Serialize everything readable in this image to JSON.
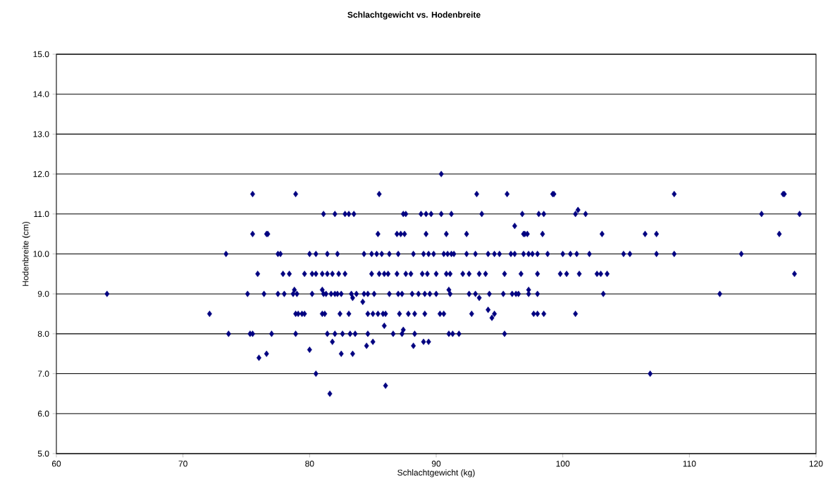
{
  "chart_data": {
    "type": "scatter",
    "title": "Schlachtgewicht vs. Hodenbreite",
    "xlabel": "Schlachtgewicht (kg)",
    "ylabel": "Hodenbreite (cm)",
    "xlim": [
      60,
      120
    ],
    "xticks": [
      60,
      70,
      80,
      90,
      100,
      110,
      120
    ],
    "ylim": [
      5,
      15
    ],
    "yticks": [
      {
        "value": 5,
        "label": "5.0"
      },
      {
        "value": 6,
        "label": "6.0"
      },
      {
        "value": 7,
        "label": "7.0"
      },
      {
        "value": 8,
        "label": "8.0"
      },
      {
        "value": 9,
        "label": "9.0"
      },
      {
        "value": 10,
        "label": "10.0"
      },
      {
        "value": 11,
        "label": "11.0"
      },
      {
        "value": 12,
        "label": "12.0"
      },
      {
        "value": 13,
        "label": "13.0"
      },
      {
        "value": 14,
        "label": "14.0"
      },
      {
        "value": 15,
        "label": "15.0"
      }
    ],
    "grid": "y",
    "legend": false,
    "marker": "diamond",
    "series": [
      {
        "color": "#000080",
        "x": [
          90.4,
          75.5,
          78.9,
          85.5,
          93.2,
          95.6,
          99.2,
          99.3,
          108.8,
          117.4,
          117.5,
          81.1,
          82.0,
          82.8,
          83.1,
          83.5,
          87.4,
          87.6,
          88.8,
          89.2,
          89.6,
          90.4,
          91.2,
          93.6,
          96.8,
          98.1,
          98.5,
          101.0,
          101.8,
          115.7,
          118.7,
          101.2,
          96.2,
          75.5,
          76.6,
          76.7,
          85.4,
          86.9,
          87.2,
          87.5,
          89.2,
          90.8,
          92.4,
          96.9,
          97.0,
          97.2,
          98.4,
          103.1,
          106.5,
          107.4,
          117.1,
          73.4,
          77.5,
          77.7,
          80.0,
          80.5,
          81.4,
          82.2,
          84.3,
          84.9,
          85.3,
          85.7,
          86.3,
          87.0,
          88.2,
          89.0,
          89.4,
          89.8,
          90.6,
          90.9,
          91.2,
          91.4,
          92.4,
          93.1,
          94.1,
          94.6,
          95.0,
          95.9,
          96.2,
          96.9,
          97.3,
          97.6,
          98.0,
          98.8,
          100.0,
          100.6,
          101.1,
          102.1,
          104.8,
          105.3,
          107.4,
          108.8,
          114.1,
          75.9,
          77.9,
          78.4,
          79.6,
          80.2,
          80.5,
          81.0,
          81.4,
          81.8,
          82.3,
          82.8,
          84.9,
          85.5,
          85.9,
          86.2,
          86.9,
          87.6,
          88.0,
          88.9,
          89.3,
          90.0,
          90.8,
          91.1,
          92.1,
          92.6,
          93.4,
          93.9,
          95.4,
          96.7,
          98.0,
          99.8,
          100.3,
          101.3,
          102.7,
          103.0,
          103.5,
          118.3,
          64.0,
          75.1,
          76.4,
          77.5,
          78.0,
          78.7,
          79.0,
          80.2,
          81.1,
          81.3,
          81.7,
          82.0,
          82.2,
          82.5,
          83.3,
          83.7,
          84.3,
          84.6,
          85.1,
          86.3,
          87.0,
          87.3,
          88.1,
          88.6,
          89.1,
          89.5,
          90.0,
          91.1,
          92.6,
          93.1,
          94.2,
          95.3,
          96.0,
          96.3,
          96.5,
          97.3,
          98.0,
          103.2,
          112.4,
          78.8,
          81.0,
          91.0,
          97.3,
          83.4,
          93.4,
          84.2,
          94.1,
          94.4,
          72.1,
          78.9,
          79.1,
          79.4,
          79.6,
          81.0,
          81.2,
          82.4,
          83.1,
          84.6,
          85.0,
          85.4,
          85.8,
          86.0,
          87.1,
          87.8,
          88.3,
          89.1,
          90.3,
          90.6,
          92.8,
          94.6,
          97.7,
          98.0,
          98.5,
          101.0,
          73.6,
          75.3,
          75.5,
          77.0,
          78.9,
          81.4,
          82.0,
          82.6,
          83.2,
          83.6,
          84.6,
          86.6,
          87.3,
          88.3,
          91.0,
          91.3,
          91.8,
          95.4,
          85.9,
          87.4,
          81.8,
          85.0,
          89.0,
          89.4,
          84.5,
          88.2,
          76.6,
          82.5,
          83.4,
          76.0,
          80.0,
          80.5,
          106.9,
          86.0,
          81.6
        ],
        "values": [
          12.0,
          11.5,
          11.5,
          11.5,
          11.5,
          11.5,
          11.5,
          11.5,
          11.5,
          11.5,
          11.5,
          11.0,
          11.0,
          11.0,
          11.0,
          11.0,
          11.0,
          11.0,
          11.0,
          11.0,
          11.0,
          11.0,
          11.0,
          11.0,
          11.0,
          11.0,
          11.0,
          11.0,
          11.0,
          11.0,
          11.0,
          11.1,
          10.7,
          10.5,
          10.5,
          10.5,
          10.5,
          10.5,
          10.5,
          10.5,
          10.5,
          10.5,
          10.5,
          10.5,
          10.5,
          10.5,
          10.5,
          10.5,
          10.5,
          10.5,
          10.5,
          10.0,
          10.0,
          10.0,
          10.0,
          10.0,
          10.0,
          10.0,
          10.0,
          10.0,
          10.0,
          10.0,
          10.0,
          10.0,
          10.0,
          10.0,
          10.0,
          10.0,
          10.0,
          10.0,
          10.0,
          10.0,
          10.0,
          10.0,
          10.0,
          10.0,
          10.0,
          10.0,
          10.0,
          10.0,
          10.0,
          10.0,
          10.0,
          10.0,
          10.0,
          10.0,
          10.0,
          10.0,
          10.0,
          10.0,
          10.0,
          10.0,
          10.0,
          9.5,
          9.5,
          9.5,
          9.5,
          9.5,
          9.5,
          9.5,
          9.5,
          9.5,
          9.5,
          9.5,
          9.5,
          9.5,
          9.5,
          9.5,
          9.5,
          9.5,
          9.5,
          9.5,
          9.5,
          9.5,
          9.5,
          9.5,
          9.5,
          9.5,
          9.5,
          9.5,
          9.5,
          9.5,
          9.5,
          9.5,
          9.5,
          9.5,
          9.5,
          9.5,
          9.5,
          9.5,
          9.0,
          9.0,
          9.0,
          9.0,
          9.0,
          9.0,
          9.0,
          9.0,
          9.0,
          9.0,
          9.0,
          9.0,
          9.0,
          9.0,
          9.0,
          9.0,
          9.0,
          9.0,
          9.0,
          9.0,
          9.0,
          9.0,
          9.0,
          9.0,
          9.0,
          9.0,
          9.0,
          9.0,
          9.0,
          9.0,
          9.0,
          9.0,
          9.0,
          9.0,
          9.0,
          9.0,
          9.0,
          9.0,
          9.0,
          9.1,
          9.1,
          9.1,
          9.1,
          8.9,
          8.9,
          8.8,
          8.6,
          8.4,
          8.5,
          8.5,
          8.5,
          8.5,
          8.5,
          8.5,
          8.5,
          8.5,
          8.5,
          8.5,
          8.5,
          8.5,
          8.5,
          8.5,
          8.5,
          8.5,
          8.5,
          8.5,
          8.5,
          8.5,
          8.5,
          8.5,
          8.5,
          8.5,
          8.5,
          8.5,
          8.0,
          8.0,
          8.0,
          8.0,
          8.0,
          8.0,
          8.0,
          8.0,
          8.0,
          8.0,
          8.0,
          8.0,
          8.0,
          8.0,
          8.0,
          8.0,
          8.0,
          8.0,
          8.2,
          8.1,
          7.8,
          7.8,
          7.8,
          7.8,
          7.7,
          7.7,
          7.5,
          7.5,
          7.5,
          7.4,
          7.6,
          7.0,
          7.0,
          6.7,
          6.5
        ]
      }
    ]
  }
}
